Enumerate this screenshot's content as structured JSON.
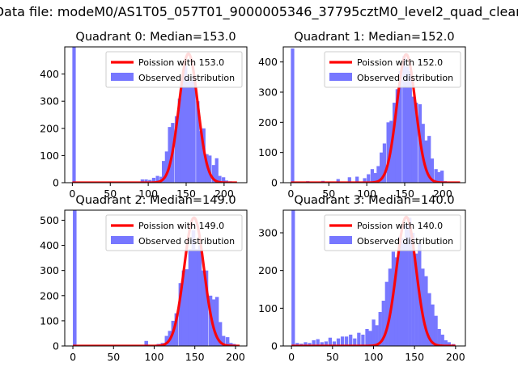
{
  "figure_title": "Data file: modeM0/AS1T05_057T01_9000005346_37795cztM0_level2_quad_clean",
  "colors": {
    "observed": "#7777ff",
    "poisson": "#ff0000",
    "background": "#ffffff"
  },
  "chart_data": [
    {
      "type": "bar",
      "title": "Quadrant 0: Median=153.0",
      "xlabel": "",
      "ylabel": "",
      "xlim": [
        -10,
        230
      ],
      "ylim": [
        0,
        500
      ],
      "xticks": [
        0,
        50,
        100,
        150,
        200
      ],
      "yticks": [
        0,
        100,
        200,
        300,
        400
      ],
      "xtick_labels": [
        "0",
        "50",
        "100",
        "150",
        "200"
      ],
      "ytick_labels": [
        "0",
        "100",
        "200",
        "300",
        "400"
      ],
      "legend_position": "upper right",
      "series": [
        {
          "name": "Poission with 153.0",
          "kind": "line",
          "mean": 153.0,
          "peak": 475,
          "x_range": [
            0,
            217
          ]
        },
        {
          "name": "Observed distribution",
          "kind": "histogram",
          "bin_width": 4.5,
          "bins": [
            {
              "x": 0,
              "value": 500
            },
            {
              "x": 90,
              "value": 12
            },
            {
              "x": 95,
              "value": 12
            },
            {
              "x": 100,
              "value": 10
            },
            {
              "x": 105,
              "value": 18
            },
            {
              "x": 110,
              "value": 25
            },
            {
              "x": 115,
              "value": 22
            },
            {
              "x": 118,
              "value": 80
            },
            {
              "x": 122,
              "value": 115
            },
            {
              "x": 126,
              "value": 205
            },
            {
              "x": 130,
              "value": 220
            },
            {
              "x": 135,
              "value": 245
            },
            {
              "x": 139,
              "value": 310
            },
            {
              "x": 143,
              "value": 385
            },
            {
              "x": 147,
              "value": 430
            },
            {
              "x": 150,
              "value": 390
            },
            {
              "x": 154,
              "value": 375
            },
            {
              "x": 158,
              "value": 395
            },
            {
              "x": 163,
              "value": 300
            },
            {
              "x": 167,
              "value": 190
            },
            {
              "x": 171,
              "value": 200
            },
            {
              "x": 175,
              "value": 105
            },
            {
              "x": 179,
              "value": 100
            },
            {
              "x": 184,
              "value": 65
            },
            {
              "x": 188,
              "value": 90
            },
            {
              "x": 192,
              "value": 25
            },
            {
              "x": 197,
              "value": 20
            },
            {
              "x": 201,
              "value": 8
            },
            {
              "x": 206,
              "value": 5
            }
          ]
        }
      ]
    },
    {
      "type": "bar",
      "title": "Quadrant 1: Median=152.0",
      "xlabel": "",
      "ylabel": "",
      "xlim": [
        -10,
        230
      ],
      "ylim": [
        0,
        450
      ],
      "xticks": [
        0,
        50,
        100,
        150,
        200
      ],
      "yticks": [
        0,
        100,
        200,
        300,
        400
      ],
      "xtick_labels": [
        "0",
        "50",
        "100",
        "150",
        "200"
      ],
      "ytick_labels": [
        "0",
        "100",
        "200",
        "300",
        "400"
      ],
      "legend_position": "upper right",
      "series": [
        {
          "name": "Poission with 152.0",
          "kind": "line",
          "mean": 152.0,
          "peak": 425,
          "x_range": [
            0,
            223
          ]
        },
        {
          "name": "Observed distribution",
          "kind": "histogram",
          "bin_width": 4.5,
          "bins": [
            {
              "x": 0,
              "value": 445
            },
            {
              "x": 20,
              "value": 5
            },
            {
              "x": 40,
              "value": 6
            },
            {
              "x": 60,
              "value": 12
            },
            {
              "x": 75,
              "value": 18
            },
            {
              "x": 85,
              "value": 20
            },
            {
              "x": 95,
              "value": 15
            },
            {
              "x": 100,
              "value": 28
            },
            {
              "x": 105,
              "value": 45
            },
            {
              "x": 109,
              "value": 32
            },
            {
              "x": 113,
              "value": 55
            },
            {
              "x": 117,
              "value": 100
            },
            {
              "x": 121,
              "value": 130
            },
            {
              "x": 126,
              "value": 200
            },
            {
              "x": 130,
              "value": 205
            },
            {
              "x": 134,
              "value": 265
            },
            {
              "x": 138,
              "value": 310
            },
            {
              "x": 142,
              "value": 370
            },
            {
              "x": 147,
              "value": 420
            },
            {
              "x": 151,
              "value": 385
            },
            {
              "x": 155,
              "value": 370
            },
            {
              "x": 159,
              "value": 285
            },
            {
              "x": 163,
              "value": 265
            },
            {
              "x": 168,
              "value": 260
            },
            {
              "x": 172,
              "value": 195
            },
            {
              "x": 176,
              "value": 140
            },
            {
              "x": 180,
              "value": 155
            },
            {
              "x": 184,
              "value": 80
            },
            {
              "x": 189,
              "value": 45
            },
            {
              "x": 193,
              "value": 35
            },
            {
              "x": 197,
              "value": 40
            },
            {
              "x": 201,
              "value": 5
            }
          ]
        }
      ]
    },
    {
      "type": "bar",
      "title": "Quadrant 2: Median=149.0",
      "xlabel": "",
      "ylabel": "",
      "xlim": [
        -10,
        214
      ],
      "ylim": [
        0,
        540
      ],
      "xticks": [
        0,
        50,
        100,
        150,
        200
      ],
      "yticks": [
        0,
        100,
        200,
        300,
        400,
        500
      ],
      "xtick_labels": [
        "0",
        "50",
        "100",
        "150",
        "200"
      ],
      "ytick_labels": [
        "0",
        "100",
        "200",
        "300",
        "400",
        "500"
      ],
      "legend_position": "upper right",
      "series": [
        {
          "name": "Poission with 149.0",
          "kind": "line",
          "mean": 149.0,
          "peak": 510,
          "x_range": [
            0,
            205
          ]
        },
        {
          "name": "Observed distribution",
          "kind": "histogram",
          "bin_width": 4.5,
          "bins": [
            {
              "x": 0,
              "value": 540
            },
            {
              "x": 88,
              "value": 20
            },
            {
              "x": 103,
              "value": 8
            },
            {
              "x": 108,
              "value": 12
            },
            {
              "x": 113,
              "value": 40
            },
            {
              "x": 117,
              "value": 60
            },
            {
              "x": 121,
              "value": 100
            },
            {
              "x": 125,
              "value": 130
            },
            {
              "x": 130,
              "value": 250
            },
            {
              "x": 134,
              "value": 300
            },
            {
              "x": 138,
              "value": 305
            },
            {
              "x": 142,
              "value": 385
            },
            {
              "x": 146,
              "value": 460
            },
            {
              "x": 150,
              "value": 385
            },
            {
              "x": 154,
              "value": 400
            },
            {
              "x": 158,
              "value": 300
            },
            {
              "x": 162,
              "value": 300
            },
            {
              "x": 167,
              "value": 200
            },
            {
              "x": 171,
              "value": 185
            },
            {
              "x": 175,
              "value": 195
            },
            {
              "x": 179,
              "value": 95
            },
            {
              "x": 183,
              "value": 40
            },
            {
              "x": 188,
              "value": 35
            },
            {
              "x": 192,
              "value": 12
            },
            {
              "x": 196,
              "value": 8
            }
          ]
        }
      ]
    },
    {
      "type": "bar",
      "title": "Quadrant 3: Median=140.0",
      "xlabel": "",
      "ylabel": "",
      "xlim": [
        -10,
        212
      ],
      "ylim": [
        0,
        360
      ],
      "xticks": [
        0,
        50,
        100,
        150,
        200
      ],
      "yticks": [
        0,
        100,
        200,
        300
      ],
      "xtick_labels": [
        "0",
        "50",
        "100",
        "150",
        "200"
      ],
      "ytick_labels": [
        "0",
        "100",
        "200",
        "300"
      ],
      "legend_position": "upper right",
      "series": [
        {
          "name": "Poission with 140.0",
          "kind": "line",
          "mean": 140.0,
          "peak": 342,
          "x_range": [
            0,
            200
          ]
        },
        {
          "name": "Observed distribution",
          "kind": "histogram",
          "bin_width": 4.2,
          "bins": [
            {
              "x": 0,
              "value": 360
            },
            {
              "x": 5,
              "value": 8
            },
            {
              "x": 10,
              "value": 6
            },
            {
              "x": 15,
              "value": 10
            },
            {
              "x": 20,
              "value": 8
            },
            {
              "x": 25,
              "value": 15
            },
            {
              "x": 30,
              "value": 18
            },
            {
              "x": 35,
              "value": 10
            },
            {
              "x": 40,
              "value": 12
            },
            {
              "x": 45,
              "value": 22
            },
            {
              "x": 50,
              "value": 12
            },
            {
              "x": 55,
              "value": 20
            },
            {
              "x": 60,
              "value": 25
            },
            {
              "x": 65,
              "value": 25
            },
            {
              "x": 70,
              "value": 30
            },
            {
              "x": 75,
              "value": 20
            },
            {
              "x": 80,
              "value": 35
            },
            {
              "x": 85,
              "value": 30
            },
            {
              "x": 90,
              "value": 45
            },
            {
              "x": 94,
              "value": 40
            },
            {
              "x": 98,
              "value": 70
            },
            {
              "x": 102,
              "value": 55
            },
            {
              "x": 106,
              "value": 90
            },
            {
              "x": 110,
              "value": 120
            },
            {
              "x": 114,
              "value": 170
            },
            {
              "x": 118,
              "value": 205
            },
            {
              "x": 122,
              "value": 250
            },
            {
              "x": 126,
              "value": 235
            },
            {
              "x": 130,
              "value": 290
            },
            {
              "x": 134,
              "value": 285
            },
            {
              "x": 138,
              "value": 320
            },
            {
              "x": 142,
              "value": 340
            },
            {
              "x": 146,
              "value": 300
            },
            {
              "x": 150,
              "value": 245
            },
            {
              "x": 154,
              "value": 275
            },
            {
              "x": 158,
              "value": 205
            },
            {
              "x": 162,
              "value": 185
            },
            {
              "x": 166,
              "value": 140
            },
            {
              "x": 170,
              "value": 110
            },
            {
              "x": 174,
              "value": 80
            },
            {
              "x": 178,
              "value": 45
            },
            {
              "x": 182,
              "value": 30
            },
            {
              "x": 186,
              "value": 15
            },
            {
              "x": 190,
              "value": 10
            },
            {
              "x": 195,
              "value": 5
            }
          ]
        }
      ]
    }
  ]
}
